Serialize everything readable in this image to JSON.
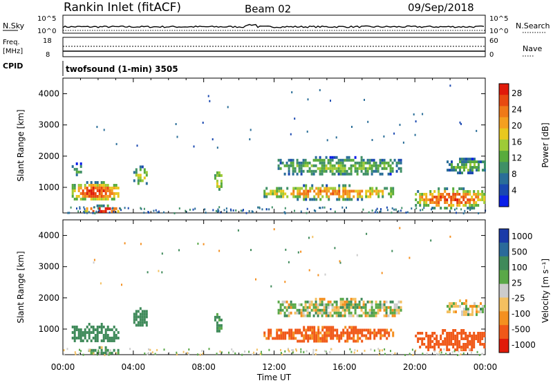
{
  "header": {
    "station": "Rankin Inlet (fitACF)",
    "beam": "Beam 02",
    "date": "09/Sep/2018"
  },
  "panels": {
    "nsky_label": "N.Sky",
    "nsearch_label": "N.Search",
    "nsky_ticks": [
      "10^5",
      "10^0"
    ],
    "nsearch_ticks": [
      "10^5",
      "10^0"
    ],
    "freq_label": "Freq.",
    "freq_unit": "[MHz]",
    "freq_ticks": [
      "18",
      "8"
    ],
    "nave_label": "Nave",
    "nave_ticks": [
      "60",
      "0"
    ],
    "cpid_label": "CPID",
    "cpid_text": "twofsound (1-min) 3505"
  },
  "chart_data": [
    {
      "type": "heatmap",
      "name": "power",
      "ylabel": "Slant Range [km]",
      "yticks": [
        "1000",
        "2000",
        "3000",
        "4000"
      ],
      "ylim": [
        180,
        4500
      ],
      "xlim": [
        0,
        24
      ],
      "colorbar": {
        "label": "Power [dB]",
        "ticks": [
          "4",
          "8",
          "12",
          "16",
          "20",
          "24",
          "28"
        ],
        "colors": [
          "#0a1ee8",
          "#1a48b0",
          "#2a6e98",
          "#3f9066",
          "#58ab3c",
          "#9ecb36",
          "#e8c81e",
          "#f4a020",
          "#f07a18",
          "#e84a10",
          "#e01a0a"
        ]
      },
      "echo_regions": [
        {
          "t": [
            0.5,
            3.2
          ],
          "r": [
            600,
            1200
          ],
          "strength": 0.85
        },
        {
          "t": [
            1.2,
            3.2
          ],
          "r": [
            200,
            450
          ],
          "strength": 0.95
        },
        {
          "t": [
            0.5,
            1.2
          ],
          "r": [
            1400,
            1800
          ],
          "strength": 0.35
        },
        {
          "t": [
            4.0,
            4.8
          ],
          "r": [
            1100,
            1700
          ],
          "strength": 0.5
        },
        {
          "t": [
            8.6,
            9.0
          ],
          "r": [
            900,
            1600
          ],
          "strength": 0.6
        },
        {
          "t": [
            11.4,
            18.8
          ],
          "r": [
            650,
            1100
          ],
          "strength": 0.7
        },
        {
          "t": [
            12.2,
            19.2
          ],
          "r": [
            1400,
            2000
          ],
          "strength": 0.4
        },
        {
          "t": [
            20.0,
            24.0
          ],
          "r": [
            350,
            1000
          ],
          "strength": 0.8
        },
        {
          "t": [
            21.8,
            24.0
          ],
          "r": [
            1500,
            1950
          ],
          "strength": 0.4
        }
      ]
    },
    {
      "type": "heatmap",
      "name": "velocity",
      "ylabel": "Slant Range [km]",
      "yticks": [
        "1000",
        "2000",
        "3000",
        "4000"
      ],
      "ylim": [
        180,
        4500
      ],
      "xlim": [
        0,
        24
      ],
      "xticks": [
        "00:00",
        "04:00",
        "08:00",
        "12:00",
        "16:00",
        "20:00",
        "00:00"
      ],
      "xlabel": "Time UT",
      "colorbar": {
        "label": "Velocity [m s⁻¹]",
        "ticks": [
          "1000",
          "500",
          "100",
          "25",
          "-25",
          "-100",
          "-500",
          "-1000"
        ],
        "colors": [
          "#1a3aa8",
          "#2a6a9a",
          "#3f8a5a",
          "#5aa848",
          "#cccccc",
          "#f4c060",
          "#f49020",
          "#f05818",
          "#e01a0a"
        ]
      },
      "echo_regions": [
        {
          "t": [
            0.5,
            3.2
          ],
          "r": [
            600,
            1200
          ],
          "velocity": 150
        },
        {
          "t": [
            1.2,
            3.2
          ],
          "r": [
            200,
            450
          ],
          "velocity": 60
        },
        {
          "t": [
            4.0,
            4.8
          ],
          "r": [
            1100,
            1700
          ],
          "velocity": 150
        },
        {
          "t": [
            8.6,
            9.0
          ],
          "r": [
            900,
            1600
          ],
          "velocity": 120
        },
        {
          "t": [
            11.4,
            18.8
          ],
          "r": [
            650,
            1100
          ],
          "velocity": -350
        },
        {
          "t": [
            12.2,
            19.2
          ],
          "r": [
            1400,
            2000
          ],
          "velocity": 0
        },
        {
          "t": [
            20.0,
            24.0
          ],
          "r": [
            350,
            1000
          ],
          "velocity": -400
        },
        {
          "t": [
            21.8,
            24.0
          ],
          "r": [
            1500,
            1950
          ],
          "velocity": 0
        }
      ]
    }
  ]
}
